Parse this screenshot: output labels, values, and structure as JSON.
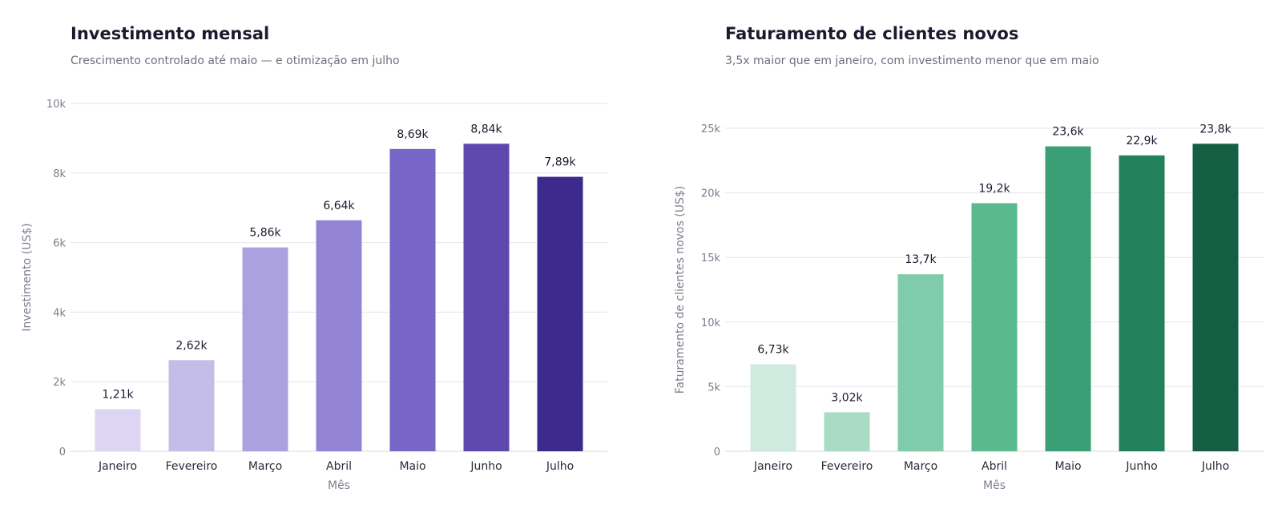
{
  "chart_data": [
    {
      "type": "bar",
      "title": "Investimento mensal",
      "subtitle": "Crescimento controlado até maio — e otimização em julho",
      "categories": [
        "Janeiro",
        "Fevereiro",
        "Março",
        "Abril",
        "Maio",
        "Junho",
        "Julho"
      ],
      "values": [
        1210,
        2620,
        5860,
        6640,
        8690,
        8840,
        7890
      ],
      "data_labels": [
        "1,21k",
        "2,62k",
        "5,86k",
        "6,64k",
        "8,69k",
        "8,84k",
        "7,89k"
      ],
      "colors": [
        "#dcd6f2",
        "#c4bde9",
        "#aba1e1",
        "#9384d6",
        "#7766c8",
        "#5e48ae",
        "#3c2a8c"
      ],
      "xlabel": "Mês",
      "ylabel": "Investimento (US$)",
      "ylim": [
        0,
        10000
      ],
      "yticks": [
        0,
        2000,
        4000,
        6000,
        8000,
        10000
      ],
      "ytick_labels": [
        "0",
        "2k",
        "4k",
        "6k",
        "8k",
        "10k"
      ],
      "grid": true
    },
    {
      "type": "bar",
      "title": "Faturamento de clientes novos",
      "subtitle": "3,5x maior que em janeiro, com investimento menor que em maio",
      "categories": [
        "Janeiro",
        "Fevereiro",
        "Março",
        "Abril",
        "Maio",
        "Junho",
        "Julho"
      ],
      "values": [
        6730,
        3020,
        13700,
        19200,
        23600,
        22900,
        23800
      ],
      "data_labels": [
        "6,73k",
        "3,02k",
        "13,7k",
        "19,2k",
        "23,6k",
        "22,9k",
        "23,8k"
      ],
      "colors": [
        "#cfeadf",
        "#a9dbc5",
        "#80cbaa",
        "#5aba8e",
        "#3a9f75",
        "#22805b",
        "#145f43"
      ],
      "xlabel": "Mês",
      "ylabel": "Faturamento de clientes novos (US$)",
      "ylim": [
        0,
        25000
      ],
      "yticks": [
        0,
        5000,
        10000,
        15000,
        20000,
        25000
      ],
      "ytick_labels": [
        "0",
        "5k",
        "10k",
        "15k",
        "20k",
        "25k"
      ],
      "grid": true
    }
  ]
}
